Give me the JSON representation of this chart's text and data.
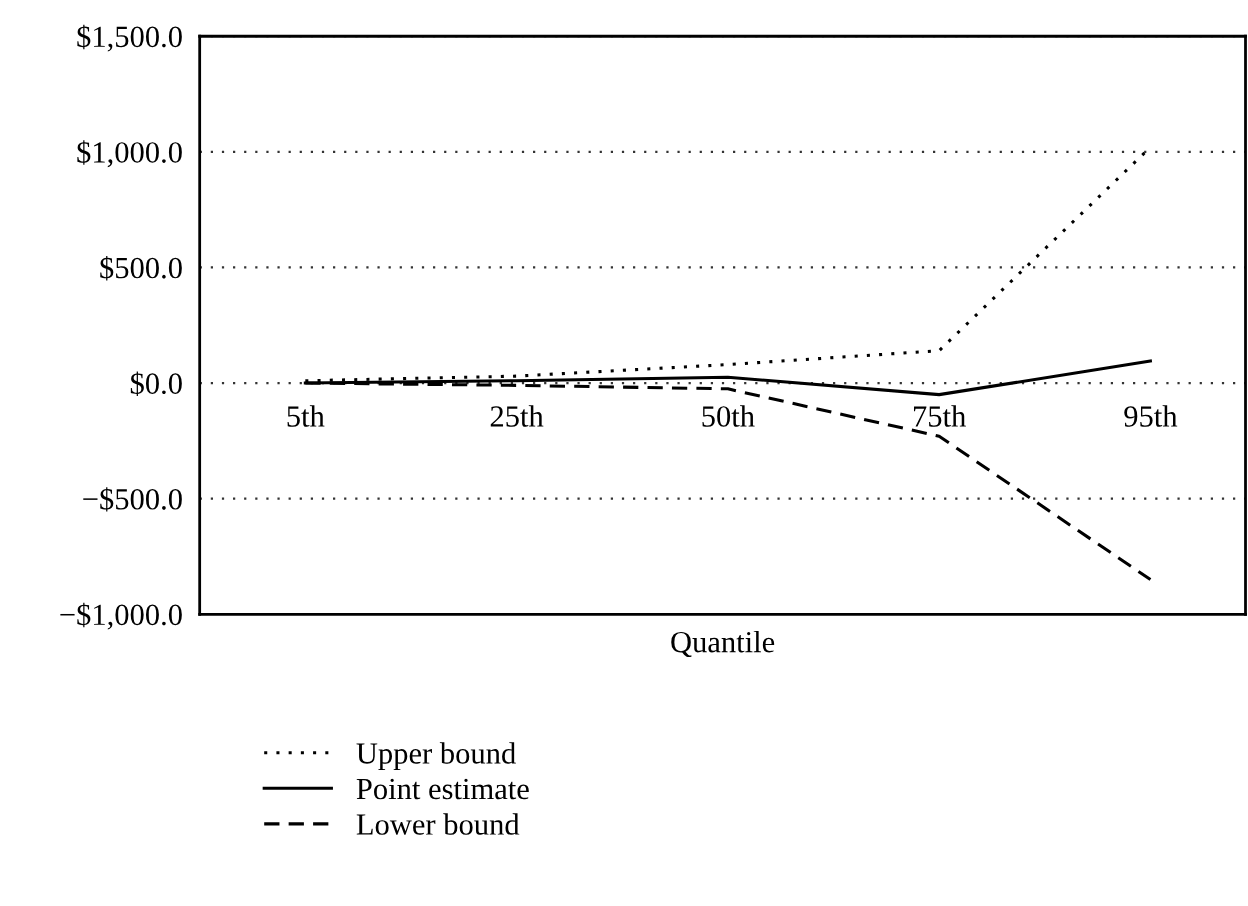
{
  "chart_data": {
    "type": "line",
    "xlabel": "Quantile",
    "categories": [
      "5th",
      "25th",
      "50th",
      "75th",
      "95th"
    ],
    "series": [
      {
        "name": "Upper bound",
        "color": "#000000",
        "line_style": "dotted",
        "values": [
          10,
          30,
          80,
          140,
          1020
        ]
      },
      {
        "name": "Point estimate",
        "color": "#000000",
        "line_style": "solid",
        "values": [
          0,
          10,
          25,
          -50,
          95
        ]
      },
      {
        "name": "Lower bound",
        "color": "#000000",
        "line_style": "dashed",
        "values": [
          0,
          -10,
          -25,
          -230,
          -850
        ]
      }
    ],
    "ylim": [
      -1000,
      1500
    ],
    "yticks": [
      {
        "value": -1000,
        "label": "−$1,000.0"
      },
      {
        "value": -500,
        "label": "−$500.0"
      },
      {
        "value": 0,
        "label": "$0.0"
      },
      {
        "value": 500,
        "label": "$500.0"
      },
      {
        "value": 1000,
        "label": "$1,000.0"
      },
      {
        "value": 1500,
        "label": "$1,500.0"
      }
    ],
    "grid": "y",
    "legend": "bottom",
    "marker": "none"
  }
}
